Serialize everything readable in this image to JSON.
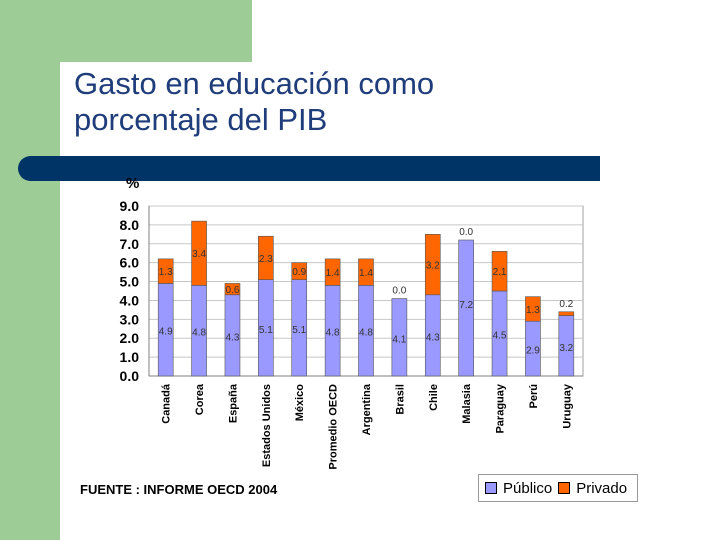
{
  "slide": {
    "title_line1": "Gasto en educación como",
    "title_line2": "porcentaje del PIB",
    "source": "FUENTE : INFORME OECD 2004"
  },
  "colors": {
    "green": "#9dcc97",
    "navy": "#003366",
    "title": "#1f3d7a",
    "publico": "#9999ff",
    "privado": "#ff6600"
  },
  "chart_data": {
    "type": "bar",
    "stacked": true,
    "unit_label": "%",
    "ylim": [
      0,
      9
    ],
    "yticks": [
      "0.0",
      "1.0",
      "2.0",
      "3.0",
      "4.0",
      "5.0",
      "6.0",
      "7.0",
      "8.0",
      "9.0"
    ],
    "categories": [
      "Canadá",
      "Corea",
      "España",
      "Estados Unidos",
      "México",
      "Promedio OECD",
      "Argentina",
      "Brasil",
      "Chile",
      "Malasia",
      "Paraguay",
      "Perú",
      "Uruguay"
    ],
    "series": [
      {
        "name": "Público",
        "values": [
          4.9,
          4.8,
          4.3,
          5.1,
          5.1,
          4.8,
          4.8,
          4.1,
          4.3,
          7.2,
          4.5,
          2.9,
          3.2
        ],
        "labels": [
          "4.9",
          "4.8",
          "4.3",
          "5.1",
          "5.1",
          "4.8",
          "4.8",
          "4.1",
          "4.3",
          "7.2",
          "4.5",
          "2.9",
          "3.2"
        ]
      },
      {
        "name": "Privado",
        "values": [
          1.3,
          3.4,
          0.6,
          2.3,
          0.9,
          1.4,
          1.4,
          0.0,
          3.2,
          0.0,
          2.1,
          1.3,
          0.2
        ],
        "labels": [
          "1.3",
          "3.4",
          "0.6",
          "2.3",
          "0.9",
          "1.4",
          "1.4",
          "0.0",
          "3.2",
          "0.0",
          "2.1",
          "1.3",
          "0.2"
        ]
      }
    ],
    "legend": [
      "Público",
      "Privado"
    ],
    "legend_position": "bottom-right",
    "grid": true
  }
}
